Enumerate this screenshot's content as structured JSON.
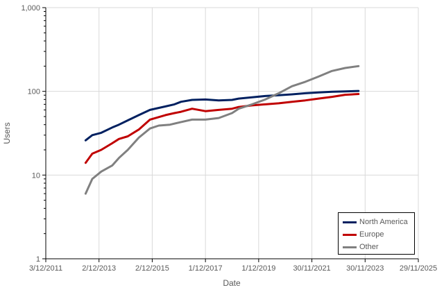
{
  "chart_data": {
    "type": "line",
    "title": "",
    "xlabel": "Date",
    "ylabel": "Users",
    "y_scale": "log",
    "ylim": [
      1,
      1000
    ],
    "y_ticks": [
      "1",
      "10",
      "100",
      "1,000"
    ],
    "x_ticks": [
      "3/12/2011",
      "2/12/2013",
      "2/12/2015",
      "1/12/2017",
      "1/12/2019",
      "30/11/2021",
      "30/11/2023",
      "29/11/2025"
    ],
    "xlim": [
      "2011-12-03",
      "2025-11-29"
    ],
    "grid": "vertical and horizontal",
    "legend_position": "bottom-right",
    "series": [
      {
        "name": "North America",
        "color": "#002060",
        "points": [
          [
            "2013-06-01",
            26
          ],
          [
            "2013-09-01",
            30
          ],
          [
            "2014-01-01",
            32
          ],
          [
            "2014-06-01",
            37
          ],
          [
            "2014-09-01",
            40
          ],
          [
            "2015-01-01",
            45
          ],
          [
            "2015-06-01",
            52
          ],
          [
            "2015-11-01",
            60
          ],
          [
            "2016-06-01",
            66
          ],
          [
            "2016-10-01",
            70
          ],
          [
            "2017-01-01",
            75
          ],
          [
            "2017-06-01",
            79
          ],
          [
            "2017-12-01",
            80
          ],
          [
            "2018-06-01",
            78
          ],
          [
            "2018-12-01",
            79
          ],
          [
            "2019-03-01",
            82
          ],
          [
            "2019-09-01",
            85
          ],
          [
            "2020-03-01",
            88
          ],
          [
            "2020-09-01",
            90
          ],
          [
            "2021-03-01",
            92
          ],
          [
            "2021-09-01",
            95
          ],
          [
            "2022-03-01",
            97
          ],
          [
            "2022-09-01",
            99
          ],
          [
            "2023-03-01",
            100
          ],
          [
            "2023-09-01",
            101
          ]
        ]
      },
      {
        "name": "Europe",
        "color": "#C00000",
        "points": [
          [
            "2013-06-01",
            14
          ],
          [
            "2013-09-01",
            18
          ],
          [
            "2014-01-01",
            20
          ],
          [
            "2014-06-01",
            24
          ],
          [
            "2014-09-01",
            27
          ],
          [
            "2015-01-01",
            29
          ],
          [
            "2015-06-01",
            35
          ],
          [
            "2015-11-01",
            46
          ],
          [
            "2016-06-01",
            52
          ],
          [
            "2016-10-01",
            55
          ],
          [
            "2017-01-01",
            57
          ],
          [
            "2017-06-01",
            62
          ],
          [
            "2017-12-01",
            58
          ],
          [
            "2018-06-01",
            60
          ],
          [
            "2018-12-01",
            62
          ],
          [
            "2019-03-01",
            65
          ],
          [
            "2019-09-01",
            68
          ],
          [
            "2020-03-01",
            70
          ],
          [
            "2020-09-01",
            72
          ],
          [
            "2021-03-01",
            75
          ],
          [
            "2021-09-01",
            78
          ],
          [
            "2022-03-01",
            82
          ],
          [
            "2022-09-01",
            86
          ],
          [
            "2023-03-01",
            91
          ],
          [
            "2023-09-01",
            93
          ]
        ]
      },
      {
        "name": "Other",
        "color": "#808080",
        "points": [
          [
            "2013-06-01",
            6
          ],
          [
            "2013-09-01",
            9
          ],
          [
            "2014-01-01",
            11
          ],
          [
            "2014-06-01",
            13
          ],
          [
            "2014-09-01",
            16
          ],
          [
            "2015-01-01",
            20
          ],
          [
            "2015-06-01",
            28
          ],
          [
            "2015-11-01",
            36
          ],
          [
            "2016-03-01",
            39
          ],
          [
            "2016-08-01",
            40
          ],
          [
            "2017-01-01",
            43
          ],
          [
            "2017-06-01",
            46
          ],
          [
            "2017-12-01",
            46
          ],
          [
            "2018-06-01",
            48
          ],
          [
            "2018-12-01",
            55
          ],
          [
            "2019-03-01",
            62
          ],
          [
            "2019-09-01",
            70
          ],
          [
            "2020-03-01",
            80
          ],
          [
            "2020-09-01",
            95
          ],
          [
            "2021-03-01",
            115
          ],
          [
            "2021-09-01",
            130
          ],
          [
            "2022-03-01",
            150
          ],
          [
            "2022-09-01",
            175
          ],
          [
            "2023-03-01",
            190
          ],
          [
            "2023-09-01",
            200
          ]
        ]
      }
    ]
  }
}
